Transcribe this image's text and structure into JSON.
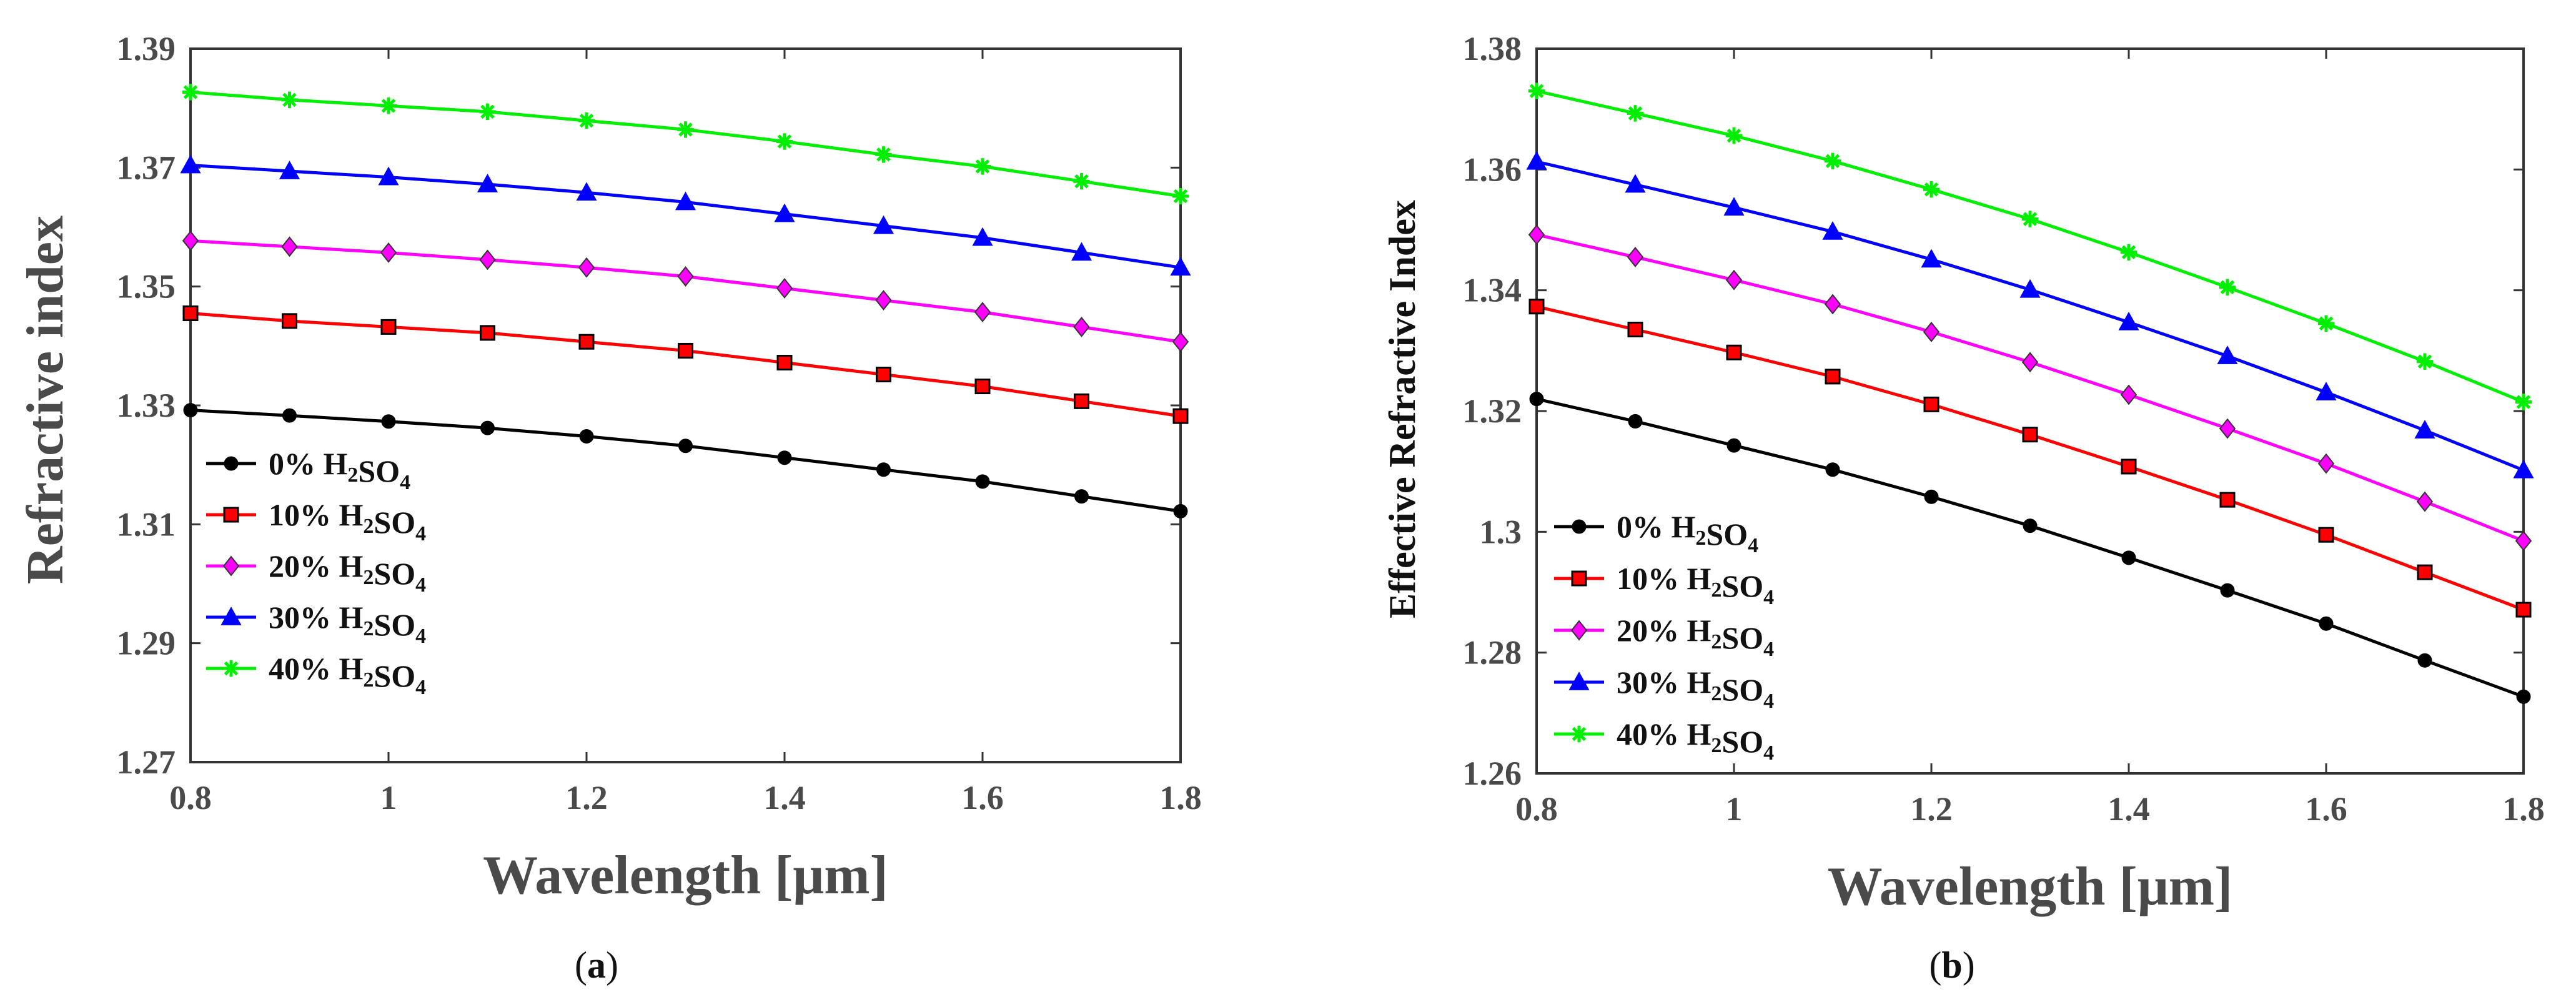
{
  "chart_data": [
    {
      "panel_label": "a",
      "type": "line",
      "xlabel": "Wavelength [μm]",
      "ylabel": "Refractive index",
      "xlim": [
        0.8,
        1.8
      ],
      "ylim": [
        1.27,
        1.39
      ],
      "xticks": [
        "0.8",
        "1",
        "1.2",
        "1.4",
        "1.6",
        "1.8"
      ],
      "yticks": [
        "1.27",
        "1.29",
        "1.31",
        "1.33",
        "1.35",
        "1.37",
        "1.39"
      ],
      "legend_position": "bottom-left",
      "x": [
        0.8,
        0.9,
        1.0,
        1.1,
        1.2,
        1.3,
        1.4,
        1.5,
        1.6,
        1.7,
        1.8
      ],
      "series": [
        {
          "pct": "0%",
          "chem": "H2SO4",
          "color": "#000000",
          "marker": "circle",
          "values": [
            1.3292,
            1.3283,
            1.3273,
            1.3262,
            1.3248,
            1.3232,
            1.3212,
            1.3192,
            1.3172,
            1.3147,
            1.3122
          ]
        },
        {
          "pct": "10%",
          "chem": "H2SO4",
          "color": "#ff0000",
          "marker": "square",
          "values": [
            1.3455,
            1.3442,
            1.3432,
            1.3422,
            1.3407,
            1.3392,
            1.3372,
            1.3352,
            1.3332,
            1.3307,
            1.3282
          ]
        },
        {
          "pct": "20%",
          "chem": "H2SO4",
          "color": "#ff00ff",
          "marker": "diamond",
          "values": [
            1.3577,
            1.3567,
            1.3557,
            1.3545,
            1.3532,
            1.3517,
            1.3497,
            1.3477,
            1.3457,
            1.3432,
            1.3407
          ]
        },
        {
          "pct": "30%",
          "chem": "H2SO4",
          "color": "#0000ff",
          "marker": "triangle",
          "values": [
            1.3704,
            1.3694,
            1.3684,
            1.3672,
            1.3658,
            1.3642,
            1.3622,
            1.3602,
            1.3582,
            1.3557,
            1.3532
          ]
        },
        {
          "pct": "40%",
          "chem": "H2SO4",
          "color": "#00ee00",
          "marker": "star",
          "values": [
            1.3827,
            1.3814,
            1.3804,
            1.3794,
            1.3779,
            1.3764,
            1.3744,
            1.3722,
            1.3702,
            1.3677,
            1.3652
          ]
        }
      ]
    },
    {
      "panel_label": "b",
      "type": "line",
      "xlabel": "Wavelength [μm]",
      "ylabel": "Effective Refractive Index",
      "xlim": [
        0.8,
        1.8
      ],
      "ylim": [
        1.26,
        1.38
      ],
      "xticks": [
        "0.8",
        "1",
        "1.2",
        "1.4",
        "1.6",
        "1.8"
      ],
      "yticks": [
        "1.26",
        "1.28",
        "1.3",
        "1.32",
        "1.34",
        "1.36",
        "1.38"
      ],
      "legend_position": "bottom-left",
      "x": [
        0.8,
        0.9,
        1.0,
        1.1,
        1.2,
        1.3,
        1.4,
        1.5,
        1.6,
        1.7,
        1.8
      ],
      "series": [
        {
          "pct": "0%",
          "chem": "H2SO4",
          "color": "#000000",
          "marker": "circle",
          "values": [
            1.322,
            1.3183,
            1.3143,
            1.3103,
            1.3058,
            1.301,
            1.2957,
            1.2903,
            1.2848,
            1.2787,
            1.2727
          ]
        },
        {
          "pct": "10%",
          "chem": "H2SO4",
          "color": "#ff0000",
          "marker": "square",
          "values": [
            1.3373,
            1.3335,
            1.3297,
            1.3257,
            1.3211,
            1.3161,
            1.3108,
            1.3053,
            1.2995,
            1.2933,
            1.2871
          ]
        },
        {
          "pct": "20%",
          "chem": "H2SO4",
          "color": "#ff00ff",
          "marker": "diamond",
          "values": [
            1.3492,
            1.3455,
            1.3417,
            1.3377,
            1.3331,
            1.3281,
            1.3227,
            1.3171,
            1.3113,
            1.305,
            1.2985
          ]
        },
        {
          "pct": "30%",
          "chem": "H2SO4",
          "color": "#0000ff",
          "marker": "triangle",
          "values": [
            1.3613,
            1.3575,
            1.3537,
            1.3497,
            1.3451,
            1.3401,
            1.3347,
            1.3291,
            1.3231,
            1.3168,
            1.3102
          ]
        },
        {
          "pct": "40%",
          "chem": "H2SO4",
          "color": "#00ee00",
          "marker": "star",
          "values": [
            1.373,
            1.3693,
            1.3656,
            1.3614,
            1.3567,
            1.3518,
            1.3463,
            1.3405,
            1.3345,
            1.3282,
            1.3215
          ]
        }
      ]
    }
  ]
}
